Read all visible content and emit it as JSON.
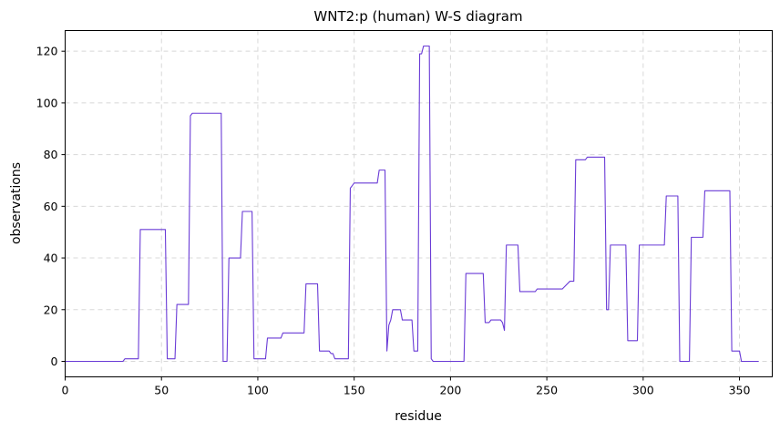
{
  "chart_data": {
    "type": "line",
    "title": "WNT2:p (human) W-S diagram",
    "xlabel": "residue",
    "ylabel": "observations",
    "xlim": [
      0,
      367
    ],
    "ylim": [
      -6,
      128
    ],
    "xticks": [
      0,
      50,
      100,
      150,
      200,
      250,
      300,
      350
    ],
    "yticks": [
      0,
      20,
      40,
      60,
      80,
      100,
      120
    ],
    "grid": true,
    "grid_style": "dashed",
    "line_color": "#6a3bd6",
    "series": [
      {
        "x": [
          0,
          30,
          31,
          37,
          38,
          39,
          52,
          53,
          57,
          58,
          63,
          64,
          65,
          66,
          81,
          82,
          84,
          85,
          91,
          92,
          97,
          98,
          99,
          104,
          105,
          112,
          113,
          124,
          125,
          131,
          132,
          137,
          138,
          139,
          140,
          147,
          148,
          149,
          150,
          158,
          159,
          162,
          163,
          166,
          167,
          168,
          169,
          170,
          174,
          175,
          180,
          181,
          182,
          183,
          184,
          185,
          186,
          189,
          190,
          191,
          192,
          200,
          201,
          207,
          208,
          217,
          218,
          220,
          221,
          226,
          227,
          228,
          229,
          230,
          235,
          236,
          244,
          245,
          257,
          258,
          262,
          263,
          264,
          265,
          270,
          271,
          272,
          280,
          281,
          282,
          283,
          291,
          292,
          297,
          298,
          310,
          311,
          312,
          318,
          319,
          324,
          325,
          330,
          331,
          332,
          344,
          345,
          346,
          350,
          351,
          352,
          360
        ],
        "y": [
          0,
          0,
          1,
          1,
          1,
          51,
          51,
          1,
          1,
          22,
          22,
          22,
          95,
          96,
          96,
          0,
          0,
          40,
          40,
          58,
          58,
          1,
          1,
          1,
          9,
          9,
          11,
          11,
          30,
          30,
          4,
          4,
          3,
          3,
          1,
          1,
          67,
          68,
          69,
          69,
          69,
          69,
          74,
          74,
          4,
          14,
          16,
          20,
          20,
          16,
          16,
          4,
          4,
          4,
          119,
          119,
          122,
          122,
          1,
          0,
          0,
          0,
          0,
          0,
          34,
          34,
          15,
          15,
          16,
          16,
          15,
          12,
          45,
          45,
          45,
          27,
          27,
          28,
          28,
          28,
          31,
          31,
          31,
          78,
          78,
          79,
          79,
          79,
          20,
          20,
          45,
          45,
          8,
          8,
          45,
          45,
          45,
          64,
          64,
          0,
          0,
          48,
          48,
          48,
          66,
          66,
          66,
          4,
          4,
          0,
          0,
          0
        ]
      }
    ]
  }
}
